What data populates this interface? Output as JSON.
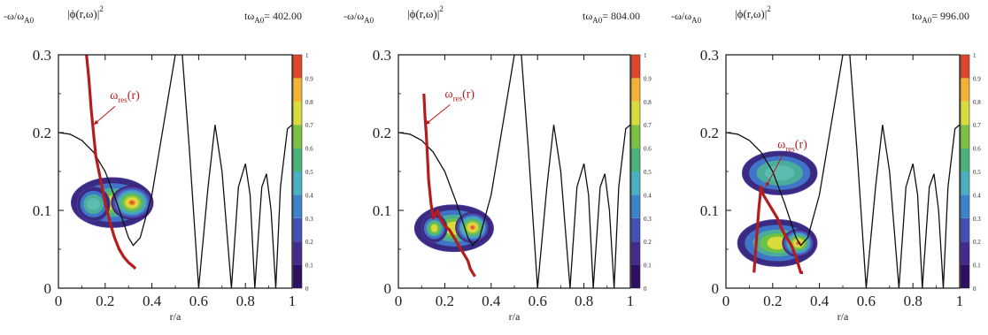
{
  "chart_data": [
    {
      "type": "heatmap",
      "ylabel_text": "-ω/ω",
      "ylabel_sub": "A0",
      "field_text": "|ϕ(r,ω)|",
      "field_sup": "2",
      "time_prefix": "tω",
      "time_sub": "A0",
      "time_value": "= 402.00",
      "xlabel": "r/a",
      "xlim": [
        0,
        1
      ],
      "ylim": [
        0,
        0.3
      ],
      "x_ticks": [
        "0",
        "0.2",
        "0.4",
        "0.6",
        "0.8",
        "1"
      ],
      "y_ticks": [
        "0",
        "0.1",
        "0.2",
        "0.3"
      ],
      "colorbar_ticks": [
        "0",
        "0.1",
        "0.2",
        "0.3",
        "0.4",
        "0.5",
        "0.6",
        "0.7",
        "0.8",
        "0.9",
        "1"
      ],
      "annotation_main": "ω",
      "annotation_sub": "res",
      "annotation_tail": "(r)",
      "annotation_text_at": [
        0.22,
        0.243
      ],
      "annotation_arrow_to": [
        0.15,
        0.21
      ],
      "continuum_curve": [
        [
          0,
          0.2
        ],
        [
          0.05,
          0.198
        ],
        [
          0.1,
          0.19
        ],
        [
          0.15,
          0.175
        ],
        [
          0.2,
          0.15
        ],
        [
          0.25,
          0.11
        ],
        [
          0.3,
          0.065
        ],
        [
          0.32,
          0.055
        ],
        [
          0.35,
          0.065
        ],
        [
          0.4,
          0.12
        ],
        [
          0.45,
          0.21
        ],
        [
          0.5,
          0.3
        ],
        [
          0.53,
          0.3
        ],
        [
          0.56,
          0.18
        ],
        [
          0.6,
          0
        ],
        [
          0.64,
          0.13
        ],
        [
          0.67,
          0.21
        ],
        [
          0.7,
          0.15
        ],
        [
          0.74,
          0
        ],
        [
          0.77,
          0.13
        ],
        [
          0.8,
          0.16
        ],
        [
          0.82,
          0.12
        ],
        [
          0.84,
          0
        ],
        [
          0.87,
          0.13
        ],
        [
          0.89,
          0.147
        ],
        [
          0.91,
          0.1
        ],
        [
          0.93,
          0
        ],
        [
          0.95,
          0.13
        ],
        [
          0.98,
          0.205
        ],
        [
          1,
          0.21
        ]
      ],
      "resonance_curve": [
        [
          0.12,
          0.3
        ],
        [
          0.13,
          0.27
        ],
        [
          0.14,
          0.23
        ],
        [
          0.15,
          0.2
        ],
        [
          0.16,
          0.17
        ],
        [
          0.18,
          0.14
        ],
        [
          0.2,
          0.11
        ],
        [
          0.22,
          0.085
        ],
        [
          0.24,
          0.065
        ],
        [
          0.26,
          0.05
        ],
        [
          0.28,
          0.04
        ],
        [
          0.3,
          0.033
        ],
        [
          0.32,
          0.028
        ],
        [
          0.33,
          0.025
        ]
      ],
      "blobs": [
        {
          "cx": 0.23,
          "cy": 0.11,
          "rx": 0.175,
          "ry": 0.032,
          "peak": 0.62
        },
        {
          "cx": 0.315,
          "cy": 0.11,
          "rx": 0.09,
          "ry": 0.022,
          "peak": 1.0
        },
        {
          "cx": 0.15,
          "cy": 0.108,
          "rx": 0.07,
          "ry": 0.022,
          "peak": 0.55
        }
      ]
    },
    {
      "type": "heatmap",
      "ylabel_text": "-ω/ω",
      "ylabel_sub": "A0",
      "field_text": "|ϕ(r,ω)|",
      "field_sup": "2",
      "time_prefix": "tω",
      "time_sub": "A0",
      "time_value": "= 804.00",
      "xlabel": "r/a",
      "xlim": [
        0,
        1
      ],
      "ylim": [
        0,
        0.3
      ],
      "x_ticks": [
        "0",
        "0.2",
        "0.4",
        "0.6",
        "0.8",
        "1"
      ],
      "y_ticks": [
        "0",
        "0.1",
        "0.2",
        "0.3"
      ],
      "colorbar_ticks": [
        "0",
        "0.1",
        "0.2",
        "0.3",
        "0.4",
        "0.5",
        "0.6",
        "0.7",
        "0.8",
        "0.9",
        "1"
      ],
      "annotation_main": "ω",
      "annotation_sub": "res",
      "annotation_tail": "(r)",
      "annotation_text_at": [
        0.2,
        0.245
      ],
      "annotation_arrow_to": [
        0.115,
        0.21
      ],
      "continuum_curve": [
        [
          0,
          0.2
        ],
        [
          0.05,
          0.198
        ],
        [
          0.1,
          0.19
        ],
        [
          0.15,
          0.175
        ],
        [
          0.2,
          0.15
        ],
        [
          0.25,
          0.11
        ],
        [
          0.3,
          0.065
        ],
        [
          0.32,
          0.055
        ],
        [
          0.35,
          0.065
        ],
        [
          0.4,
          0.12
        ],
        [
          0.45,
          0.21
        ],
        [
          0.5,
          0.3
        ],
        [
          0.53,
          0.3
        ],
        [
          0.56,
          0.18
        ],
        [
          0.6,
          0
        ],
        [
          0.64,
          0.13
        ],
        [
          0.67,
          0.21
        ],
        [
          0.7,
          0.15
        ],
        [
          0.74,
          0
        ],
        [
          0.77,
          0.13
        ],
        [
          0.8,
          0.16
        ],
        [
          0.82,
          0.12
        ],
        [
          0.84,
          0
        ],
        [
          0.87,
          0.13
        ],
        [
          0.89,
          0.147
        ],
        [
          0.91,
          0.1
        ],
        [
          0.93,
          0
        ],
        [
          0.95,
          0.13
        ],
        [
          0.98,
          0.205
        ],
        [
          1,
          0.21
        ]
      ],
      "resonance_curve": [
        [
          0.11,
          0.25
        ],
        [
          0.115,
          0.22
        ],
        [
          0.12,
          0.2
        ],
        [
          0.125,
          0.17
        ],
        [
          0.13,
          0.14
        ],
        [
          0.14,
          0.11
        ],
        [
          0.15,
          0.09
        ],
        [
          0.16,
          0.095
        ],
        [
          0.17,
          0.1
        ],
        [
          0.18,
          0.09
        ],
        [
          0.2,
          0.08
        ],
        [
          0.22,
          0.075
        ],
        [
          0.24,
          0.065
        ],
        [
          0.26,
          0.055
        ],
        [
          0.28,
          0.045
        ],
        [
          0.3,
          0.035
        ],
        [
          0.31,
          0.025
        ],
        [
          0.32,
          0.02
        ],
        [
          0.33,
          0.015
        ]
      ],
      "blobs": [
        {
          "cx": 0.24,
          "cy": 0.077,
          "rx": 0.17,
          "ry": 0.03,
          "peak": 0.6
        },
        {
          "cx": 0.32,
          "cy": 0.078,
          "rx": 0.075,
          "ry": 0.02,
          "peak": 1.0
        },
        {
          "cx": 0.155,
          "cy": 0.077,
          "rx": 0.055,
          "ry": 0.018,
          "peak": 0.7
        }
      ]
    },
    {
      "type": "heatmap",
      "ylabel_text": "-ω/ω",
      "ylabel_sub": "A0",
      "field_text": "|ϕ(r,ω)|",
      "field_sup": "2",
      "time_prefix": "tω",
      "time_sub": "A0",
      "time_value": "= 996.00",
      "xlabel": "r/a",
      "xlim": [
        0,
        1
      ],
      "ylim": [
        0,
        0.3
      ],
      "x_ticks": [
        "0",
        "0.2",
        "0.4",
        "0.6",
        "0.8",
        "1"
      ],
      "y_ticks": [
        "0",
        "0.1",
        "0.2",
        "0.3"
      ],
      "colorbar_ticks": [
        "0",
        "0.1",
        "0.2",
        "0.3",
        "0.4",
        "0.5",
        "0.6",
        "0.7",
        "0.8",
        "0.9",
        "1"
      ],
      "annotation_main": "ω",
      "annotation_sub": "res",
      "annotation_tail": "(r)",
      "annotation_text_at": [
        0.22,
        0.18
      ],
      "annotation_arrow_to": [
        0.17,
        0.13
      ],
      "continuum_curve": [
        [
          0,
          0.2
        ],
        [
          0.05,
          0.198
        ],
        [
          0.1,
          0.19
        ],
        [
          0.15,
          0.175
        ],
        [
          0.2,
          0.15
        ],
        [
          0.25,
          0.11
        ],
        [
          0.3,
          0.065
        ],
        [
          0.32,
          0.055
        ],
        [
          0.35,
          0.065
        ],
        [
          0.4,
          0.12
        ],
        [
          0.45,
          0.21
        ],
        [
          0.5,
          0.3
        ],
        [
          0.53,
          0.3
        ],
        [
          0.56,
          0.18
        ],
        [
          0.6,
          0
        ],
        [
          0.64,
          0.13
        ],
        [
          0.67,
          0.21
        ],
        [
          0.7,
          0.15
        ],
        [
          0.74,
          0
        ],
        [
          0.77,
          0.13
        ],
        [
          0.8,
          0.16
        ],
        [
          0.82,
          0.12
        ],
        [
          0.84,
          0
        ],
        [
          0.87,
          0.13
        ],
        [
          0.89,
          0.147
        ],
        [
          0.91,
          0.1
        ],
        [
          0.93,
          0
        ],
        [
          0.95,
          0.13
        ],
        [
          0.98,
          0.205
        ],
        [
          1,
          0.21
        ]
      ],
      "resonance_curve": [
        [
          0.12,
          0.02
        ],
        [
          0.13,
          0.06
        ],
        [
          0.14,
          0.1
        ],
        [
          0.15,
          0.13
        ],
        [
          0.16,
          0.12
        ],
        [
          0.18,
          0.11
        ],
        [
          0.2,
          0.1
        ],
        [
          0.22,
          0.09
        ],
        [
          0.24,
          0.075
        ],
        [
          0.26,
          0.065
        ],
        [
          0.28,
          0.055
        ],
        [
          0.3,
          0.04
        ],
        [
          0.31,
          0.03
        ],
        [
          0.32,
          0.02
        ],
        [
          0.33,
          0.02
        ]
      ],
      "blobs": [
        {
          "cx": 0.23,
          "cy": 0.148,
          "rx": 0.16,
          "ry": 0.028,
          "peak": 0.5
        },
        {
          "cx": 0.22,
          "cy": 0.058,
          "rx": 0.17,
          "ry": 0.03,
          "peak": 0.62
        },
        {
          "cx": 0.31,
          "cy": 0.058,
          "rx": 0.07,
          "ry": 0.018,
          "peak": 1.0
        }
      ]
    }
  ]
}
